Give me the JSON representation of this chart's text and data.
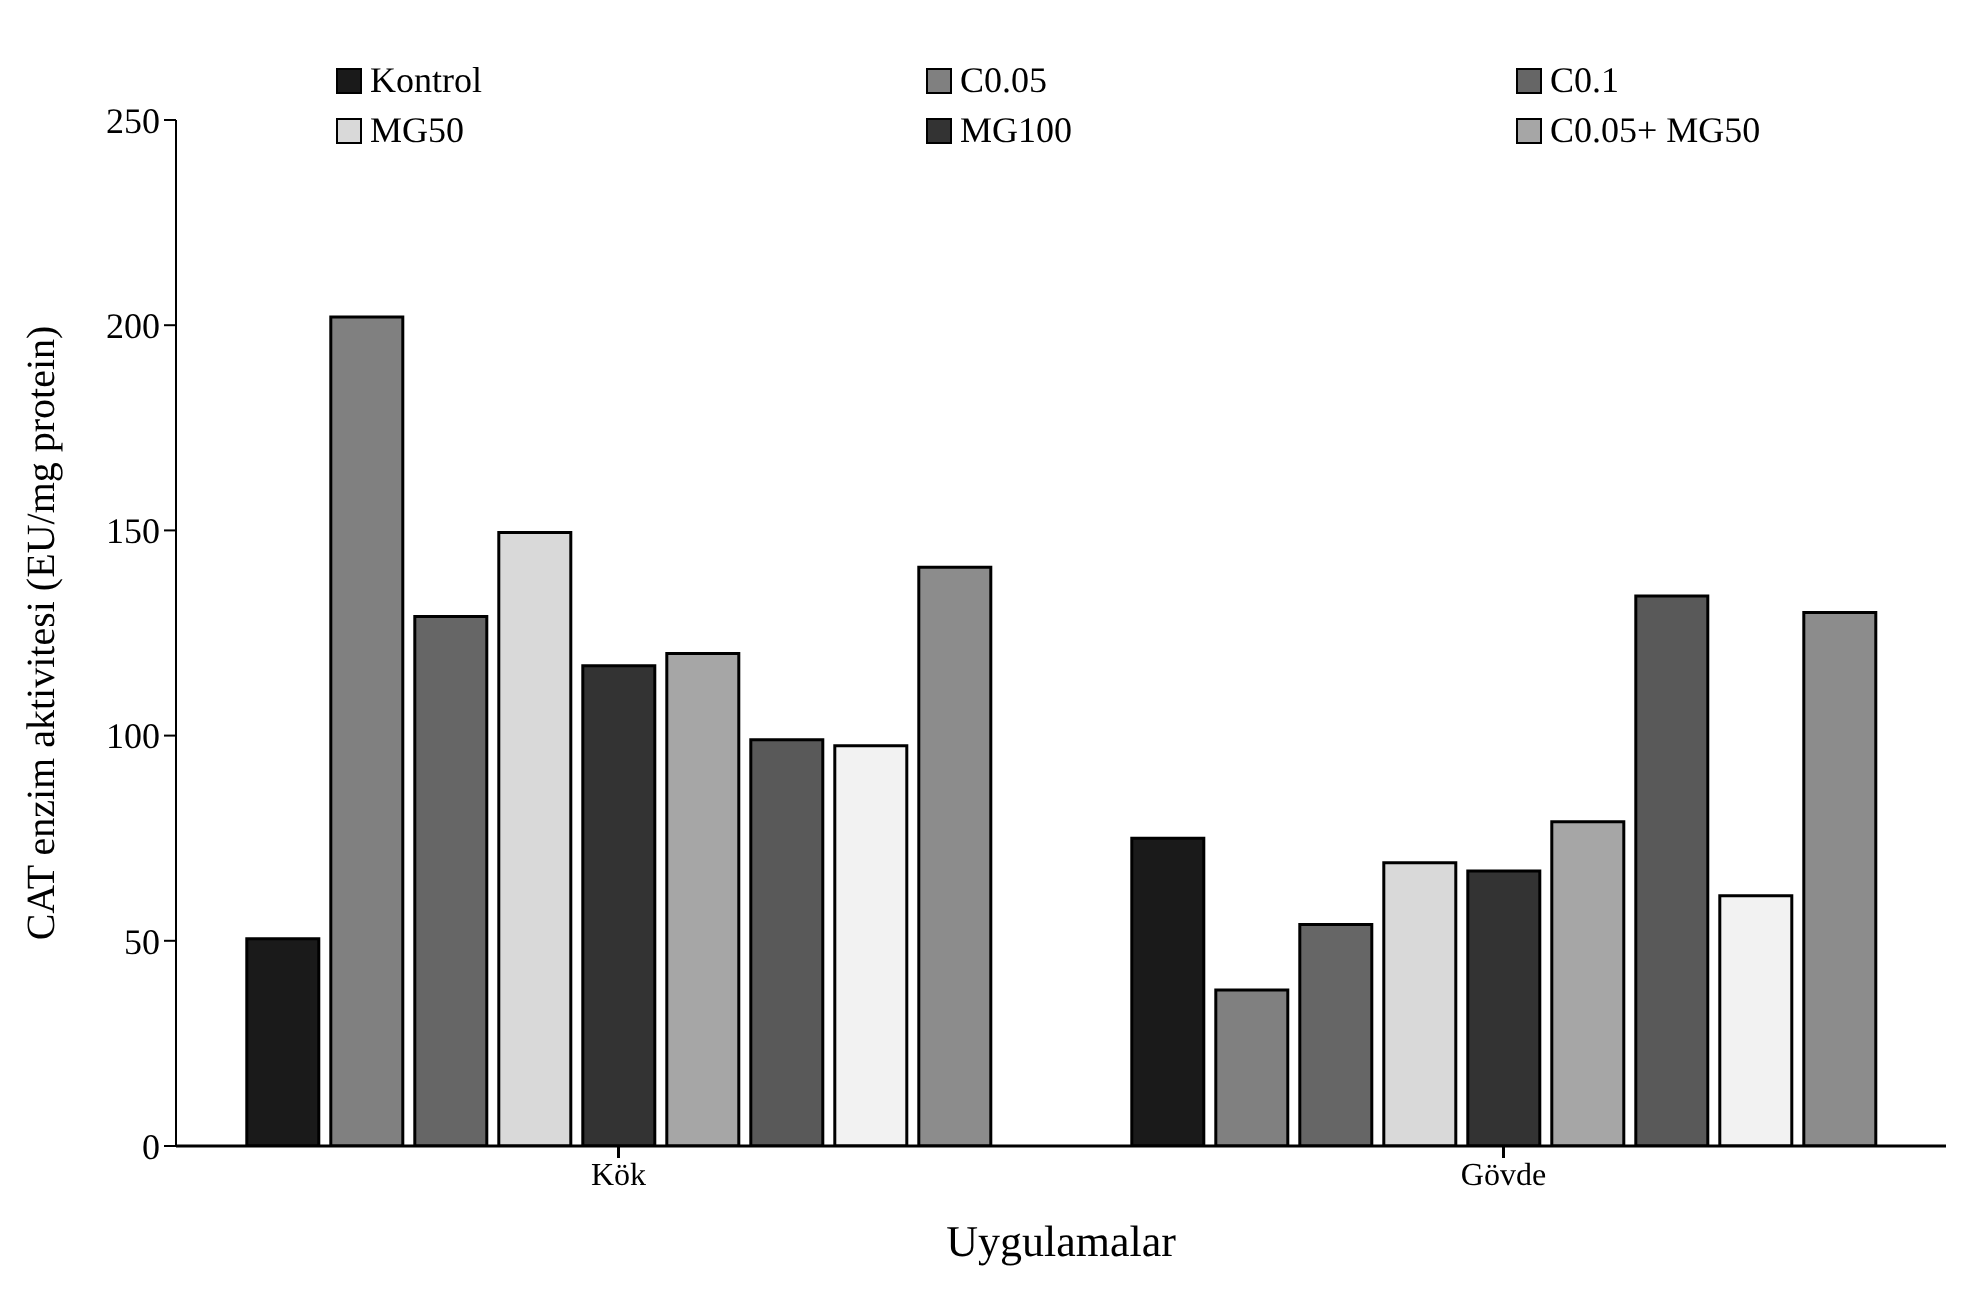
{
  "chart_data": {
    "type": "bar",
    "xlabel": "Uygulamalar",
    "ylabel": "CAT enzim aktivitesi (EU/mg protein)",
    "categories": [
      "Kök",
      "Gövde"
    ],
    "series": [
      {
        "name": "Kontrol",
        "color": "#1a1a1a",
        "values": [
          50.5,
          75
        ]
      },
      {
        "name": "C0.05",
        "color": "#808080",
        "values": [
          202,
          38
        ]
      },
      {
        "name": "C0.1",
        "color": "#666666",
        "values": [
          129,
          54
        ]
      },
      {
        "name": "MG50",
        "color": "#d9d9d9",
        "values": [
          149.5,
          69
        ]
      },
      {
        "name": "MG100",
        "color": "#333333",
        "values": [
          117,
          67
        ]
      },
      {
        "name": "C0.05+ MG50",
        "color": "#a6a6a6",
        "values": [
          120,
          79
        ]
      },
      {
        "color": "#595959",
        "values": [
          99,
          134
        ]
      },
      {
        "color": "#f2f2f2",
        "values": [
          97.5,
          61
        ]
      },
      {
        "color": "#8c8c8c",
        "values": [
          141,
          130
        ]
      }
    ],
    "ylim": [
      0,
      250
    ],
    "yticks": [
      0,
      50,
      100,
      150,
      200,
      250
    ],
    "legend": "top"
  }
}
